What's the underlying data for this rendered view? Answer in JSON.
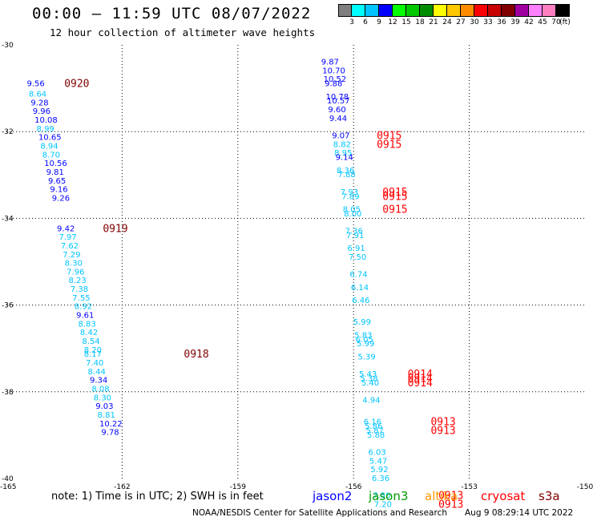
{
  "header": {
    "title": "00:00 – 11:59 UTC 08/07/2022",
    "subtitle": "12 hour collection of altimeter wave heights"
  },
  "color_legend": {
    "cells": [
      "#7f7f7f",
      "#00ffff",
      "#00c4ff",
      "#0000ff",
      "#00ff00",
      "#00c800",
      "#008c00",
      "#ffff00",
      "#ffc800",
      "#ff8c00",
      "#ff0000",
      "#c80000",
      "#800000",
      "#a000a0",
      "#ff80ff",
      "#ff80c0",
      "#000000"
    ],
    "labels": [
      "3",
      "6",
      "9",
      "12",
      "15",
      "18",
      "21",
      "24",
      "27",
      "30",
      "33",
      "36",
      "39",
      "42",
      "45",
      "70",
      "(ft)"
    ]
  },
  "footer": {
    "note": "note:  1) Time is in UTC;  2) SWH is in feet",
    "satellites": [
      {
        "name": "jason2",
        "color": "#0000ff"
      },
      {
        "name": "jason3",
        "color": "#009c00"
      },
      {
        "name": "altika",
        "color": "#ff9600"
      },
      {
        "name": "cryosat",
        "color": "#ff0000"
      },
      {
        "name": "s3a",
        "color": "#800000"
      }
    ],
    "credit": "NOAA/NESDIS Center for Satellite Applications and Research",
    "generated": "Aug  9 08:29:14 UTC 2022"
  },
  "chart_data": {
    "type": "scatter",
    "title": "00:00 – 11:59 UTC 08/07/2022",
    "subtitle": "12 hour collection of altimeter wave heights",
    "xlim": [
      -165,
      -150
    ],
    "ylim": [
      -40,
      -30
    ],
    "x_ticks": [
      "-165",
      "-162",
      "-159",
      "-156",
      "-153",
      "-150"
    ],
    "y_ticks": [
      "-30",
      "-32",
      "-34",
      "-36",
      "-38",
      "-40"
    ],
    "grid": true,
    "colors": {
      "cyan": "#00c4ff",
      "blue": "#0000ff",
      "red": "#ff0000",
      "maroon": "#800000"
    },
    "points": [
      {
        "lon": -164.47,
        "lat": -30.88,
        "v": "9.56",
        "c": "blue"
      },
      {
        "lon": -164.42,
        "lat": -31.12,
        "v": "8.64",
        "c": "cyan"
      },
      {
        "lon": -164.37,
        "lat": -31.32,
        "v": "9.28",
        "c": "blue"
      },
      {
        "lon": -164.32,
        "lat": -31.52,
        "v": "9.96",
        "c": "blue"
      },
      {
        "lon": -164.27,
        "lat": -31.72,
        "v": "10.08",
        "c": "blue"
      },
      {
        "lon": -164.22,
        "lat": -31.92,
        "v": "8.99",
        "c": "cyan"
      },
      {
        "lon": -164.17,
        "lat": -32.12,
        "v": "10.65",
        "c": "blue"
      },
      {
        "lon": -164.12,
        "lat": -32.32,
        "v": "8.94",
        "c": "cyan"
      },
      {
        "lon": -164.07,
        "lat": -32.52,
        "v": "8.70",
        "c": "cyan"
      },
      {
        "lon": -164.02,
        "lat": -32.72,
        "v": "10.56",
        "c": "blue"
      },
      {
        "lon": -163.97,
        "lat": -32.92,
        "v": "9.81",
        "c": "blue"
      },
      {
        "lon": -163.92,
        "lat": -33.12,
        "v": "9.65",
        "c": "blue"
      },
      {
        "lon": -163.87,
        "lat": -33.32,
        "v": "9.16",
        "c": "blue"
      },
      {
        "lon": -163.82,
        "lat": -33.52,
        "v": "9.26",
        "c": "blue"
      },
      {
        "lon": -163.69,
        "lat": -34.22,
        "v": "9.42",
        "c": "blue"
      },
      {
        "lon": -163.64,
        "lat": -34.42,
        "v": "7.97",
        "c": "cyan"
      },
      {
        "lon": -163.59,
        "lat": -34.62,
        "v": "7.62",
        "c": "cyan"
      },
      {
        "lon": -163.54,
        "lat": -34.82,
        "v": "7.29",
        "c": "cyan"
      },
      {
        "lon": -163.49,
        "lat": -35.02,
        "v": "8.30",
        "c": "cyan"
      },
      {
        "lon": -163.44,
        "lat": -35.22,
        "v": "7.96",
        "c": "cyan"
      },
      {
        "lon": -163.39,
        "lat": -35.42,
        "v": "8.23",
        "c": "cyan"
      },
      {
        "lon": -163.34,
        "lat": -35.62,
        "v": "7.38",
        "c": "cyan"
      },
      {
        "lon": -163.29,
        "lat": -35.82,
        "v": "7.55",
        "c": "cyan"
      },
      {
        "lon": -163.24,
        "lat": -36.02,
        "v": "8.92",
        "c": "cyan"
      },
      {
        "lon": -163.19,
        "lat": -36.22,
        "v": "9.61",
        "c": "blue"
      },
      {
        "lon": -163.14,
        "lat": -36.42,
        "v": "8.83",
        "c": "cyan"
      },
      {
        "lon": -163.09,
        "lat": -36.62,
        "v": "8.42",
        "c": "cyan"
      },
      {
        "lon": -163.04,
        "lat": -36.82,
        "v": "8.54",
        "c": "cyan"
      },
      {
        "lon": -162.99,
        "lat": -37.02,
        "v": "8.20",
        "c": "cyan"
      },
      {
        "lon": -162.99,
        "lat": -37.12,
        "v": "8.17",
        "c": "cyan"
      },
      {
        "lon": -162.94,
        "lat": -37.32,
        "v": "7.40",
        "c": "cyan"
      },
      {
        "lon": -162.89,
        "lat": -37.52,
        "v": "8.44",
        "c": "cyan"
      },
      {
        "lon": -162.84,
        "lat": -37.72,
        "v": "9.34",
        "c": "blue"
      },
      {
        "lon": -162.79,
        "lat": -37.92,
        "v": "8.08",
        "c": "cyan"
      },
      {
        "lon": -162.74,
        "lat": -38.12,
        "v": "8.30",
        "c": "cyan"
      },
      {
        "lon": -162.69,
        "lat": -38.32,
        "v": "9.03",
        "c": "blue"
      },
      {
        "lon": -162.64,
        "lat": -38.52,
        "v": "8.81",
        "c": "cyan"
      },
      {
        "lon": -162.59,
        "lat": -38.72,
        "v": "10.22",
        "c": "blue"
      },
      {
        "lon": -162.54,
        "lat": -38.92,
        "v": "9.78",
        "c": "blue"
      },
      {
        "lon": -156.84,
        "lat": -30.38,
        "v": "9.87",
        "c": "blue"
      },
      {
        "lon": -156.81,
        "lat": -30.58,
        "v": "10.70",
        "c": "blue"
      },
      {
        "lon": -156.78,
        "lat": -30.78,
        "v": "10.52",
        "c": "blue"
      },
      {
        "lon": -156.75,
        "lat": -30.88,
        "v": "9.88",
        "c": "blue"
      },
      {
        "lon": -156.72,
        "lat": -31.18,
        "v": "10.78",
        "c": "blue"
      },
      {
        "lon": -156.69,
        "lat": -31.28,
        "v": "10.57",
        "c": "blue"
      },
      {
        "lon": -156.66,
        "lat": -31.48,
        "v": "9.60",
        "c": "blue"
      },
      {
        "lon": -156.63,
        "lat": -31.68,
        "v": "9.44",
        "c": "blue"
      },
      {
        "lon": -156.56,
        "lat": -32.08,
        "v": "9.07",
        "c": "blue"
      },
      {
        "lon": -156.53,
        "lat": -32.28,
        "v": "8.82",
        "c": "cyan"
      },
      {
        "lon": -156.5,
        "lat": -32.48,
        "v": "8.95",
        "c": "cyan"
      },
      {
        "lon": -156.47,
        "lat": -32.58,
        "v": "9.14",
        "c": "blue"
      },
      {
        "lon": -156.44,
        "lat": -32.88,
        "v": "8.36",
        "c": "cyan"
      },
      {
        "lon": -156.41,
        "lat": -32.98,
        "v": "7.88",
        "c": "cyan"
      },
      {
        "lon": -156.34,
        "lat": -33.38,
        "v": "7.93",
        "c": "cyan"
      },
      {
        "lon": -156.31,
        "lat": -33.48,
        "v": "7.89",
        "c": "cyan"
      },
      {
        "lon": -156.28,
        "lat": -33.78,
        "v": "8.05",
        "c": "cyan"
      },
      {
        "lon": -156.25,
        "lat": -33.88,
        "v": "8.00",
        "c": "cyan"
      },
      {
        "lon": -156.22,
        "lat": -34.28,
        "v": "7.36",
        "c": "cyan"
      },
      {
        "lon": -156.19,
        "lat": -34.38,
        "v": "7.91",
        "c": "cyan"
      },
      {
        "lon": -156.16,
        "lat": -34.68,
        "v": "6.91",
        "c": "cyan"
      },
      {
        "lon": -156.13,
        "lat": -34.88,
        "v": "7.50",
        "c": "cyan"
      },
      {
        "lon": -156.1,
        "lat": -35.28,
        "v": "6.74",
        "c": "cyan"
      },
      {
        "lon": -156.07,
        "lat": -35.58,
        "v": "6.14",
        "c": "cyan"
      },
      {
        "lon": -156.04,
        "lat": -35.88,
        "v": "6.46",
        "c": "cyan"
      },
      {
        "lon": -156.01,
        "lat": -36.38,
        "v": "5.99",
        "c": "cyan"
      },
      {
        "lon": -155.98,
        "lat": -36.68,
        "v": "5.83",
        "c": "cyan"
      },
      {
        "lon": -155.95,
        "lat": -36.78,
        "v": "6.05",
        "c": "cyan"
      },
      {
        "lon": -155.92,
        "lat": -36.88,
        "v": "5.99",
        "c": "cyan"
      },
      {
        "lon": -155.89,
        "lat": -37.18,
        "v": "5.39",
        "c": "cyan"
      },
      {
        "lon": -155.86,
        "lat": -37.58,
        "v": "5.43",
        "c": "cyan"
      },
      {
        "lon": -155.83,
        "lat": -37.68,
        "v": "5.38",
        "c": "cyan"
      },
      {
        "lon": -155.8,
        "lat": -37.78,
        "v": "5.40",
        "c": "cyan"
      },
      {
        "lon": -155.77,
        "lat": -38.18,
        "v": "4.94",
        "c": "cyan"
      },
      {
        "lon": -155.74,
        "lat": -38.68,
        "v": "6.16",
        "c": "cyan"
      },
      {
        "lon": -155.71,
        "lat": -38.78,
        "v": "5.86",
        "c": "cyan"
      },
      {
        "lon": -155.68,
        "lat": -38.88,
        "v": "5.87",
        "c": "cyan"
      },
      {
        "lon": -155.65,
        "lat": -38.98,
        "v": "5.88",
        "c": "cyan"
      },
      {
        "lon": -155.62,
        "lat": -39.38,
        "v": "6.03",
        "c": "cyan"
      },
      {
        "lon": -155.59,
        "lat": -39.58,
        "v": "5.47",
        "c": "cyan"
      },
      {
        "lon": -155.56,
        "lat": -39.78,
        "v": "5.92",
        "c": "cyan"
      },
      {
        "lon": -155.53,
        "lat": -39.98,
        "v": "6.36",
        "c": "cyan"
      },
      {
        "lon": -155.5,
        "lat": -40.38,
        "v": "7.50",
        "c": "cyan"
      },
      {
        "lon": -155.47,
        "lat": -40.58,
        "v": "7.20",
        "c": "cyan"
      }
    ],
    "time_labels": [
      {
        "lon": -163.5,
        "lat": -30.88,
        "v": "0920",
        "c": "maroon"
      },
      {
        "lon": -162.5,
        "lat": -34.22,
        "v": "0919",
        "c": "maroon"
      },
      {
        "lon": -160.4,
        "lat": -37.12,
        "v": "0918",
        "c": "maroon"
      },
      {
        "lon": -155.4,
        "lat": -32.08,
        "v": "0915",
        "c": "red"
      },
      {
        "lon": -155.4,
        "lat": -32.28,
        "v": "0915",
        "c": "red"
      },
      {
        "lon": -155.25,
        "lat": -33.38,
        "v": "0915",
        "c": "red"
      },
      {
        "lon": -155.25,
        "lat": -33.48,
        "v": "0915",
        "c": "red"
      },
      {
        "lon": -155.25,
        "lat": -33.78,
        "v": "0915",
        "c": "red"
      },
      {
        "lon": -154.6,
        "lat": -37.58,
        "v": "0914",
        "c": "red"
      },
      {
        "lon": -154.6,
        "lat": -37.68,
        "v": "0914",
        "c": "red"
      },
      {
        "lon": -154.6,
        "lat": -37.78,
        "v": "0914",
        "c": "red"
      },
      {
        "lon": -154.0,
        "lat": -38.68,
        "v": "0913",
        "c": "red"
      },
      {
        "lon": -154.0,
        "lat": -38.88,
        "v": "0913",
        "c": "red"
      },
      {
        "lon": -153.8,
        "lat": -40.38,
        "v": "0913",
        "c": "red"
      },
      {
        "lon": -153.8,
        "lat": -40.58,
        "v": "0913",
        "c": "red"
      }
    ]
  }
}
